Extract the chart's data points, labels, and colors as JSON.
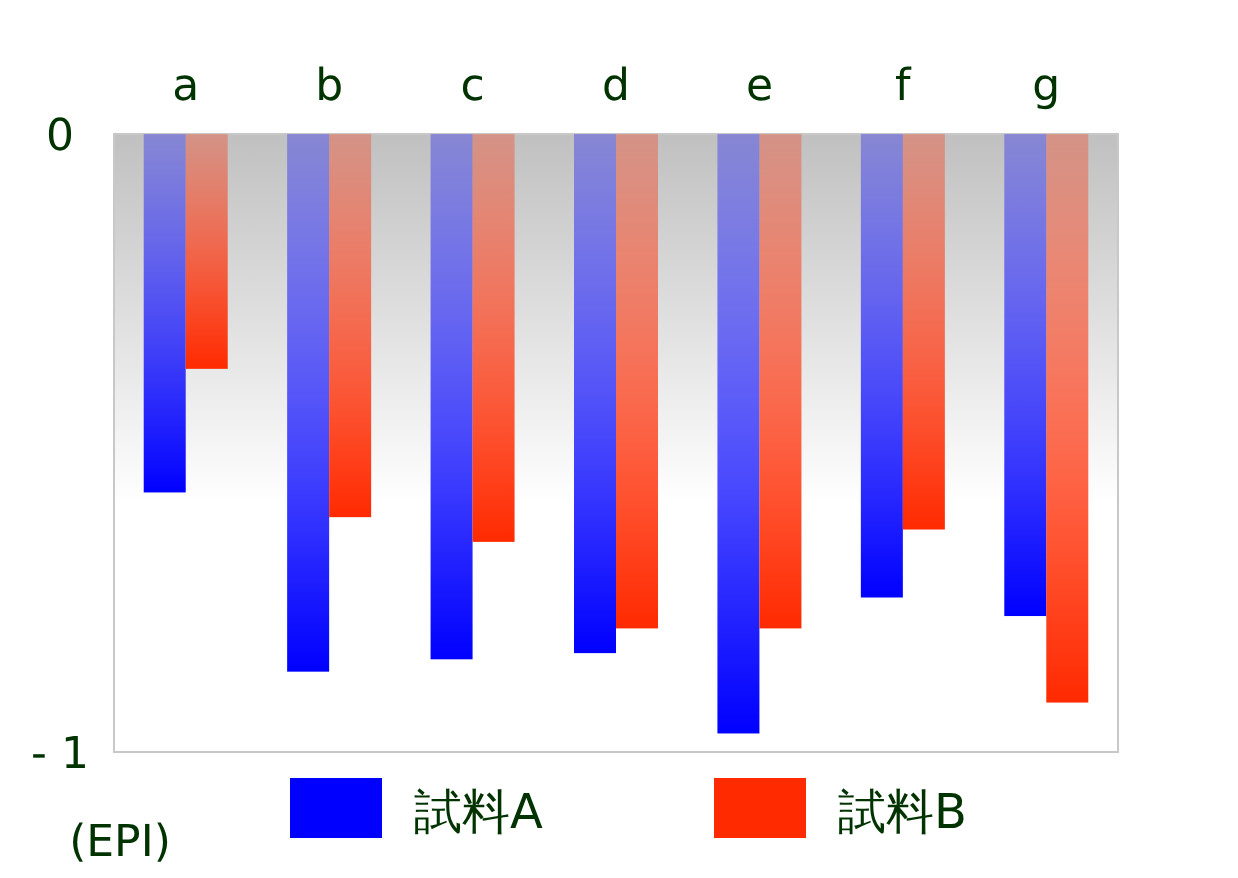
{
  "chart_data": {
    "type": "bar",
    "categories": [
      "a",
      "b",
      "c",
      "d",
      "e",
      "f",
      "g"
    ],
    "series": [
      {
        "name": "試料A",
        "color": "#0000ff",
        "values": [
          -0.58,
          -0.87,
          -0.85,
          -0.84,
          -0.97,
          -0.75,
          -0.78
        ]
      },
      {
        "name": "試料B",
        "color": "#ff2a00",
        "values": [
          -0.38,
          -0.62,
          -0.66,
          -0.8,
          -0.8,
          -0.64,
          -0.92
        ]
      }
    ],
    "ylim": [
      -1,
      0
    ],
    "yticks": [
      0,
      {
        "value": -1,
        "label": "- 1"
      }
    ],
    "ylabel": "(EPI)",
    "legend": "bottom"
  }
}
